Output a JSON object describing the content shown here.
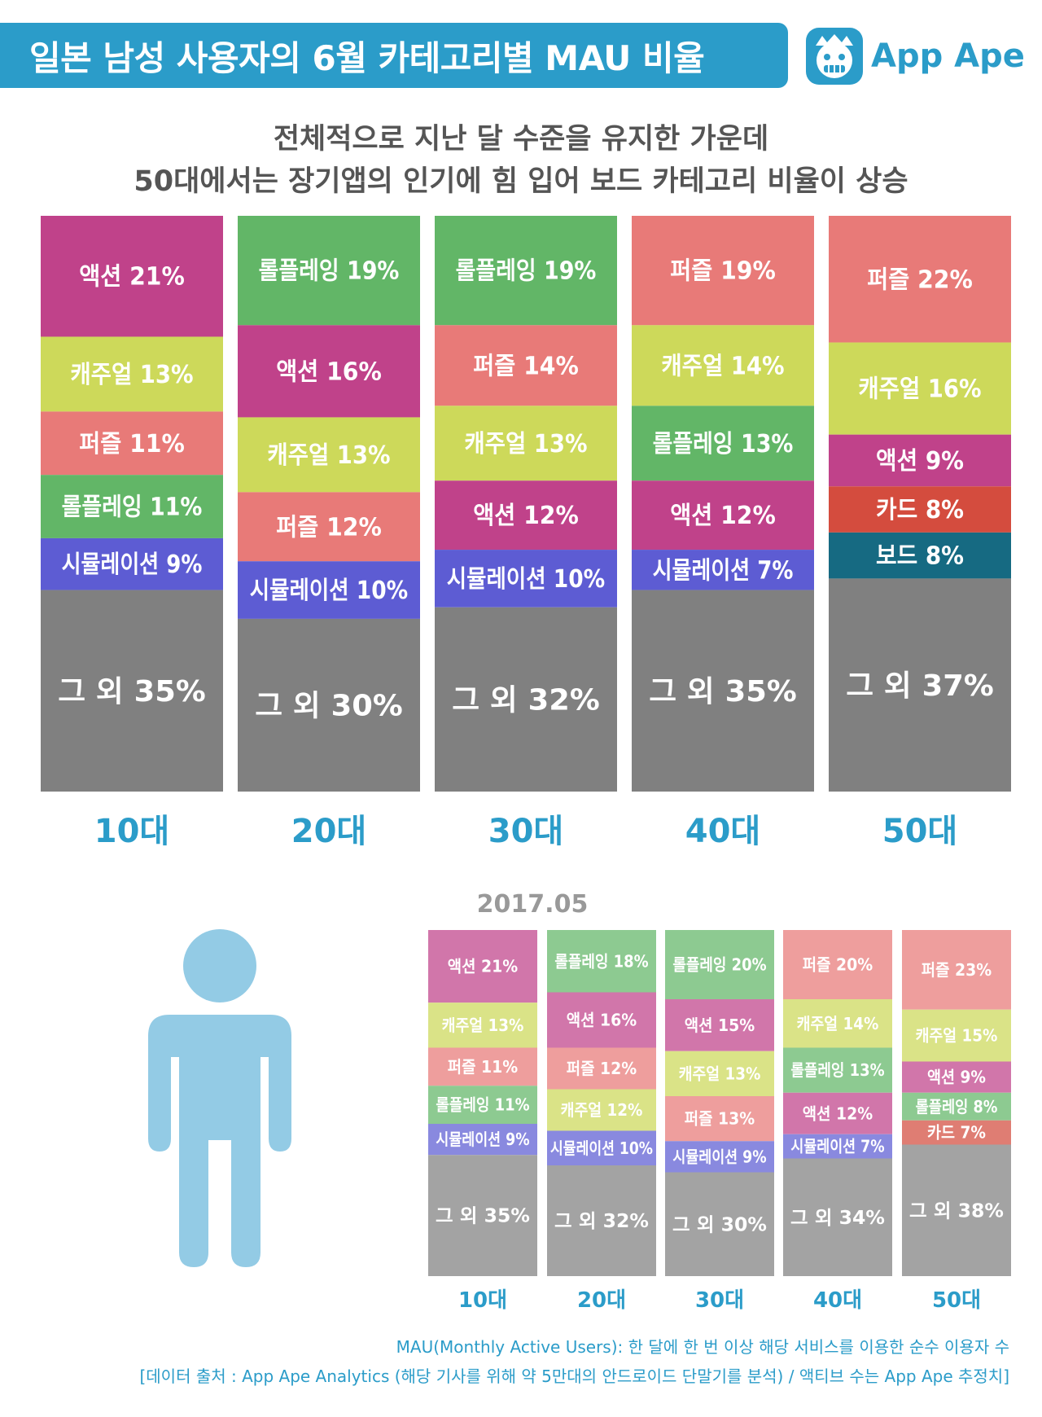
{
  "header": {
    "title": "일본 남성 사용자의 6월 카테고리별 MAU 비율",
    "brand": "App Ape",
    "subtitle_line1": "전체적으로 지난 달 수준을 유지한 가운데",
    "subtitle_line2": "50대에서는 장기앱의 인기에 힘 입어 보드 카테고리 비율이 상승"
  },
  "colors": {
    "accent": "#2b9cc9",
    "액션": "#c0428a",
    "캐주얼": "#cdd95a",
    "퍼즐": "#e87a78",
    "롤플레잉": "#62b667",
    "시뮬레이션": "#5d5cd3",
    "카드": "#d44c3e",
    "보드": "#166a82",
    "그 외": "#808080"
  },
  "chart_data": [
    {
      "type": "bar",
      "stacked": true,
      "title": "",
      "categories": [
        "10대",
        "20대",
        "30대",
        "40대",
        "50대"
      ],
      "ylim": [
        0,
        100
      ],
      "stacks": [
        [
          {
            "label": "액션",
            "text": "액션 21%",
            "value": 21
          },
          {
            "label": "캐주얼",
            "text": "캐주얼 13%",
            "value": 13
          },
          {
            "label": "퍼즐",
            "text": "퍼즐 11%",
            "value": 11
          },
          {
            "label": "롤플레잉",
            "text": "롤플레잉 11%",
            "value": 11
          },
          {
            "label": "시뮬레이션",
            "text": "시뮬레이션 9%",
            "value": 9
          },
          {
            "label": "그 외",
            "text": "그 외 35%",
            "value": 35
          }
        ],
        [
          {
            "label": "롤플레잉",
            "text": "롤플레잉 19%",
            "value": 19
          },
          {
            "label": "액션",
            "text": "액션 16%",
            "value": 16
          },
          {
            "label": "캐주얼",
            "text": "캐주얼 13%",
            "value": 13
          },
          {
            "label": "퍼즐",
            "text": "퍼즐 12%",
            "value": 12
          },
          {
            "label": "시뮬레이션",
            "text": "시뮬레이션 10%",
            "value": 10
          },
          {
            "label": "그 외",
            "text": "그 외 30%",
            "value": 30
          }
        ],
        [
          {
            "label": "롤플레잉",
            "text": "롤플레잉 19%",
            "value": 19
          },
          {
            "label": "퍼즐",
            "text": "퍼즐 14%",
            "value": 14
          },
          {
            "label": "캐주얼",
            "text": "캐주얼 13%",
            "value": 13
          },
          {
            "label": "액션",
            "text": "액션 12%",
            "value": 12
          },
          {
            "label": "시뮬레이션",
            "text": "시뮬레이션 10%",
            "value": 10
          },
          {
            "label": "그 외",
            "text": "그 외 32%",
            "value": 32
          }
        ],
        [
          {
            "label": "퍼즐",
            "text": "퍼즐 19%",
            "value": 19
          },
          {
            "label": "캐주얼",
            "text": "캐주얼 14%",
            "value": 14
          },
          {
            "label": "롤플레잉",
            "text": "롤플레잉 13%",
            "value": 13
          },
          {
            "label": "액션",
            "text": "액션 12%",
            "value": 12
          },
          {
            "label": "시뮬레이션",
            "text": "시뮬레이션 7%",
            "value": 7
          },
          {
            "label": "그 외",
            "text": "그 외 35%",
            "value": 35
          }
        ],
        [
          {
            "label": "퍼즐",
            "text": "퍼즐 22%",
            "value": 22
          },
          {
            "label": "캐주얼",
            "text": "캐주얼 16%",
            "value": 16
          },
          {
            "label": "액션",
            "text": "액션 9%",
            "value": 9
          },
          {
            "label": "카드",
            "text": "카드 8%",
            "value": 8
          },
          {
            "label": "보드",
            "text": "보드 8%",
            "value": 8
          },
          {
            "label": "그 외",
            "text": "그 외 37%",
            "value": 37
          }
        ]
      ]
    },
    {
      "type": "bar",
      "stacked": true,
      "title": "2017.05",
      "categories": [
        "10대",
        "20대",
        "30대",
        "40대",
        "50대"
      ],
      "ylim": [
        0,
        100
      ],
      "stacks": [
        [
          {
            "label": "액션",
            "text": "액션 21%",
            "value": 21
          },
          {
            "label": "캐주얼",
            "text": "캐주얼 13%",
            "value": 13
          },
          {
            "label": "퍼즐",
            "text": "퍼즐 11%",
            "value": 11
          },
          {
            "label": "롤플레잉",
            "text": "롤플레잉 11%",
            "value": 11
          },
          {
            "label": "시뮬레이션",
            "text": "시뮬레이션 9%",
            "value": 9
          },
          {
            "label": "그 외",
            "text": "그 외 35%",
            "value": 35
          }
        ],
        [
          {
            "label": "롤플레잉",
            "text": "롤플레잉 18%",
            "value": 18
          },
          {
            "label": "액션",
            "text": "액션 16%",
            "value": 16
          },
          {
            "label": "퍼즐",
            "text": "퍼즐 12%",
            "value": 12
          },
          {
            "label": "캐주얼",
            "text": "캐주얼 12%",
            "value": 12
          },
          {
            "label": "시뮬레이션",
            "text": "시뮬레이션 10%",
            "value": 10
          },
          {
            "label": "그 외",
            "text": "그 외 32%",
            "value": 32
          }
        ],
        [
          {
            "label": "롤플레잉",
            "text": "롤플레잉 20%",
            "value": 20
          },
          {
            "label": "액션",
            "text": "액션 15%",
            "value": 15
          },
          {
            "label": "캐주얼",
            "text": "캐주얼 13%",
            "value": 13
          },
          {
            "label": "퍼즐",
            "text": "퍼즐 13%",
            "value": 13
          },
          {
            "label": "시뮬레이션",
            "text": "시뮬레이션 9%",
            "value": 9
          },
          {
            "label": "그 외",
            "text": "그 외 30%",
            "value": 30
          }
        ],
        [
          {
            "label": "퍼즐",
            "text": "퍼즐 20%",
            "value": 20
          },
          {
            "label": "캐주얼",
            "text": "캐주얼 14%",
            "value": 14
          },
          {
            "label": "롤플레잉",
            "text": "롤플레잉 13%",
            "value": 13
          },
          {
            "label": "액션",
            "text": "액션 12%",
            "value": 12
          },
          {
            "label": "시뮬레이션",
            "text": "시뮬레이션 7%",
            "value": 7
          },
          {
            "label": "그 외",
            "text": "그 외 34%",
            "value": 34
          }
        ],
        [
          {
            "label": "퍼즐",
            "text": "퍼즐 23%",
            "value": 23
          },
          {
            "label": "캐주얼",
            "text": "캐주얼 15%",
            "value": 15
          },
          {
            "label": "액션",
            "text": "액션 9%",
            "value": 9
          },
          {
            "label": "롤플레잉",
            "text": "롤플레잉 8%",
            "value": 8
          },
          {
            "label": "카드",
            "text": "카드 7%",
            "value": 7
          },
          {
            "label": "그 외",
            "text": "그 외 38%",
            "value": 38
          }
        ]
      ]
    }
  ],
  "footer": {
    "definition": "MAU(Monthly Active Users): 한 달에 한 번 이상 해당 서비스를 이용한 순수 이용자 수",
    "source": "[데이터 출처 : App Ape Analytics (해당 기사를 위해 약 5만대의 안드로이드 단말기를 분석) / 액티브 수는 App Ape 추정치]"
  }
}
